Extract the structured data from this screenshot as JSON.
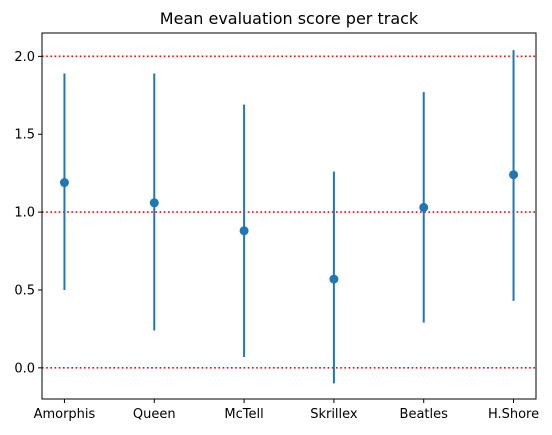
{
  "chart_data": {
    "type": "scatter",
    "subtype": "errorbar",
    "title": "Mean evaluation score per track",
    "xlabel": "",
    "ylabel": "",
    "categories": [
      "Amorphis",
      "Queen",
      "McTell",
      "Skrillex",
      "Beatles",
      "H.Shore"
    ],
    "series": [
      {
        "means": [
          1.19,
          1.06,
          0.88,
          0.57,
          1.03,
          1.24
        ],
        "lower": [
          0.5,
          0.24,
          0.07,
          -0.1,
          0.29,
          0.43
        ],
        "upper": [
          1.89,
          1.89,
          1.69,
          1.26,
          1.77,
          2.04
        ],
        "color": "#1f77b4"
      }
    ],
    "ylim": [
      -0.2,
      2.15
    ],
    "yticks": [
      "0.0",
      "0.5",
      "1.0",
      "1.5",
      "2.0"
    ],
    "reference_lines": [
      {
        "y": 0.0,
        "color": "#ff0000",
        "style": "dotted"
      },
      {
        "y": 1.0,
        "color": "#ff0000",
        "style": "dotted"
      },
      {
        "y": 2.0,
        "color": "#ff0000",
        "style": "dotted"
      }
    ],
    "grid": false,
    "legend": "none"
  }
}
